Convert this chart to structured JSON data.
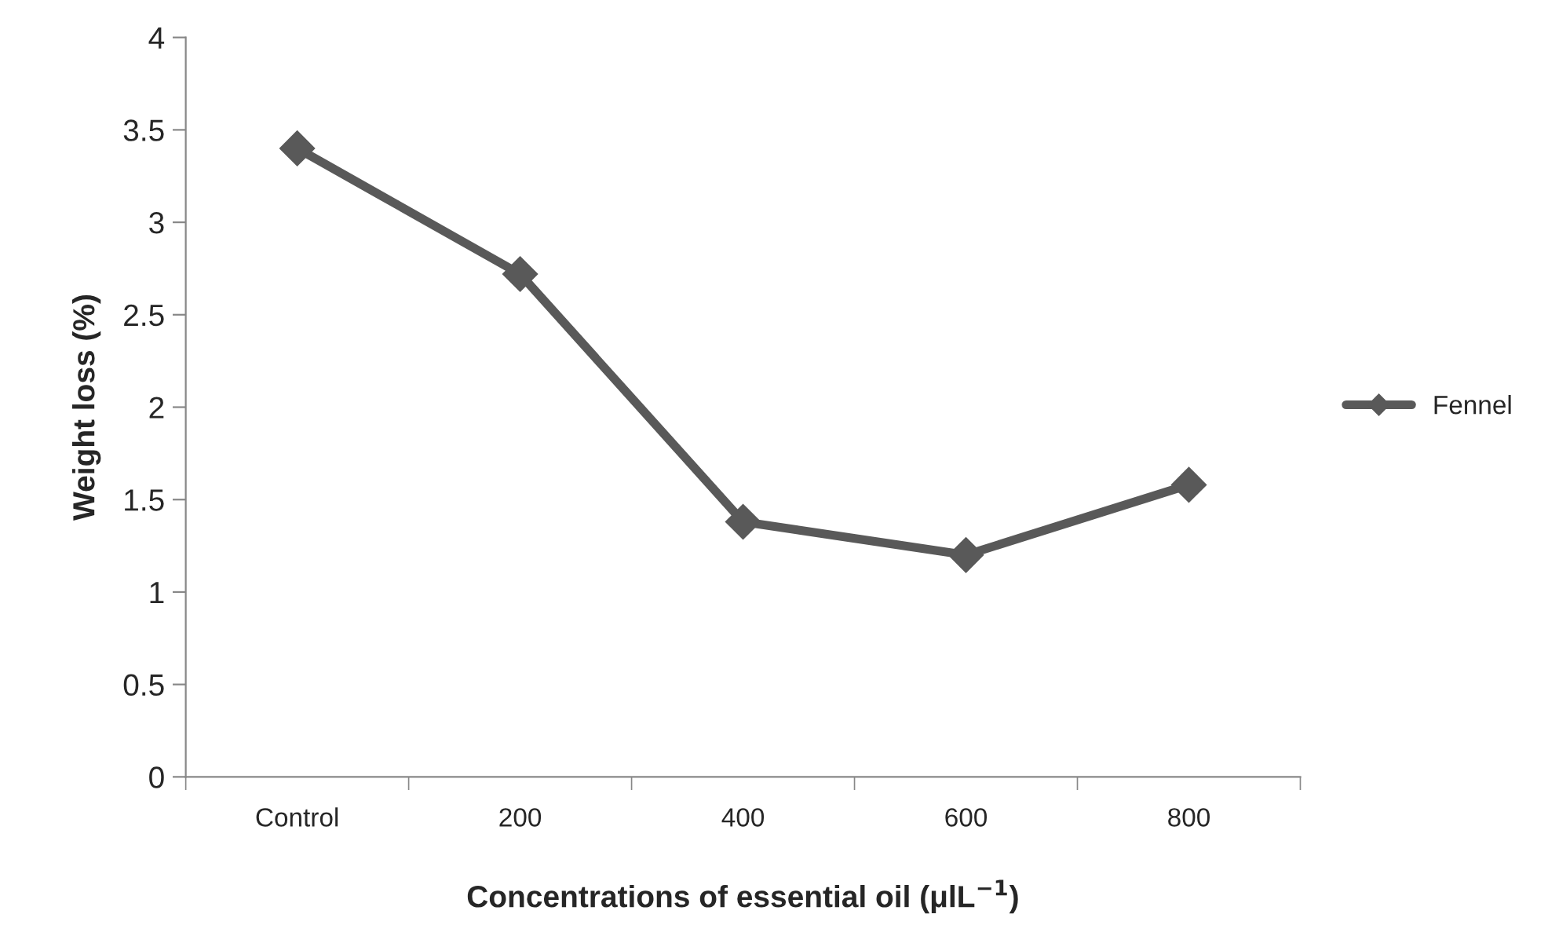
{
  "chart_data": {
    "type": "line",
    "xlabel": "Concentrations of essential oil (μlL$^{−1}$)",
    "ylabel": "Weight loss (%)",
    "categories": [
      "Control",
      "200",
      "400",
      "600",
      "800"
    ],
    "series": [
      {
        "name": "Fennel",
        "color": "#595959",
        "values": [
          3.4,
          2.72,
          1.38,
          1.2,
          1.58
        ]
      }
    ],
    "ylim": [
      0,
      4
    ],
    "yticks": [
      0,
      0.5,
      1,
      1.5,
      2,
      2.5,
      3,
      3.5,
      4
    ],
    "grid": false,
    "legend": "right",
    "marker": "diamond",
    "line_style": "solid"
  }
}
